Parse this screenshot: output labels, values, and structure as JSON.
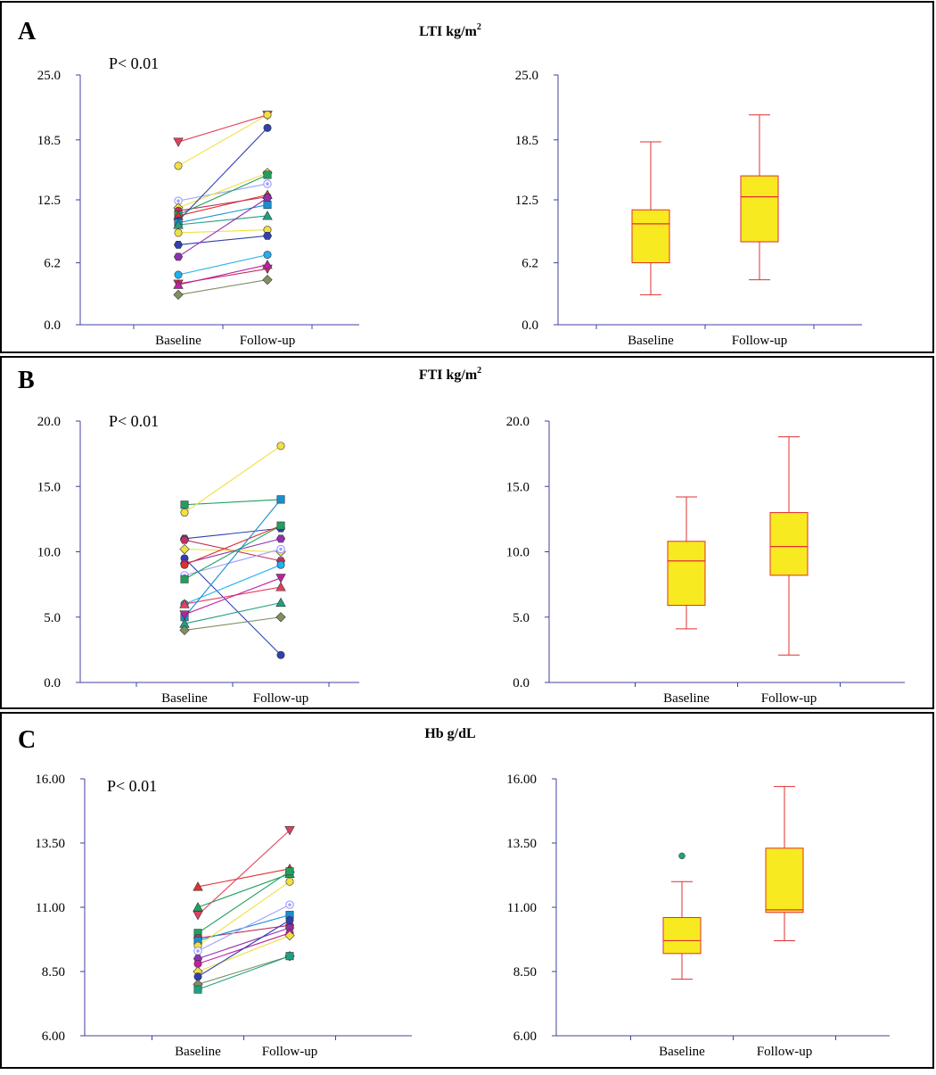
{
  "panels": [
    {
      "letter": "A",
      "title": "LTI kg/m",
      "title_sup": "2",
      "pvalue": "P< 0.01",
      "chart_data": [
        {
          "type": "line",
          "subtype": "paired-dot",
          "categories": [
            "Baseline",
            "Follow-up"
          ],
          "yticks": [
            "0.0",
            "6.2",
            "12.5",
            "18.5",
            "25.0"
          ],
          "ytick_values": [
            0,
            6.2,
            12.5,
            18.5,
            25.0
          ],
          "ylim": [
            0,
            25
          ],
          "series": [
            {
              "name": "s1",
              "values": [
                18.3,
                21.0
              ],
              "color": "#e04060",
              "marker": "triangle-down"
            },
            {
              "name": "s2",
              "values": [
                15.9,
                21.0
              ],
              "color": "#f0e040",
              "marker": "circle"
            },
            {
              "name": "s3",
              "values": [
                12.4,
                14.1
              ],
              "color": "#a0a0ff",
              "marker": "circle-ring"
            },
            {
              "name": "s4",
              "values": [
                11.7,
                15.2
              ],
              "color": "#f0e040",
              "marker": "diamond"
            },
            {
              "name": "s5",
              "values": [
                11.4,
                12.8
              ],
              "color": "#c03060",
              "marker": "circle"
            },
            {
              "name": "s6",
              "values": [
                11.0,
                15.0
              ],
              "color": "#20a060",
              "marker": "square"
            },
            {
              "name": "s7",
              "values": [
                10.9,
                13.0
              ],
              "color": "#e03030",
              "marker": "triangle"
            },
            {
              "name": "s8",
              "values": [
                10.4,
                19.7
              ],
              "color": "#3040b0",
              "marker": "circle"
            },
            {
              "name": "s9",
              "values": [
                10.2,
                12.0
              ],
              "color": "#1890d0",
              "marker": "square"
            },
            {
              "name": "s10",
              "values": [
                10.0,
                10.9
              ],
              "color": "#20a080",
              "marker": "triangle"
            },
            {
              "name": "s11",
              "values": [
                9.2,
                9.5
              ],
              "color": "#f0e040",
              "marker": "circle"
            },
            {
              "name": "s12",
              "values": [
                8.0,
                8.9
              ],
              "color": "#3040b0",
              "marker": "hexagon"
            },
            {
              "name": "s13",
              "values": [
                6.8,
                12.7
              ],
              "color": "#9030b0",
              "marker": "hexagon"
            },
            {
              "name": "s14",
              "values": [
                5.0,
                7.0
              ],
              "color": "#20b0f0",
              "marker": "circle"
            },
            {
              "name": "s15",
              "values": [
                4.1,
                5.6
              ],
              "color": "#c03060",
              "marker": "triangle-down"
            },
            {
              "name": "s16",
              "values": [
                4.0,
                6.0
              ],
              "color": "#c020a0",
              "marker": "triangle"
            },
            {
              "name": "s17",
              "values": [
                3.0,
                4.5
              ],
              "color": "#809060",
              "marker": "diamond"
            }
          ]
        },
        {
          "type": "box",
          "categories": [
            "Baseline",
            "Follow-up"
          ],
          "yticks": [
            "0.0",
            "6.2",
            "12.5",
            "18.5",
            "25.0"
          ],
          "ytick_values": [
            0,
            6.2,
            12.5,
            18.5,
            25.0
          ],
          "ylim": [
            0,
            25
          ],
          "boxes": [
            {
              "min": 3.0,
              "q1": 6.2,
              "median": 10.1,
              "q3": 11.5,
              "max": 18.3,
              "outliers": []
            },
            {
              "min": 4.5,
              "q1": 8.3,
              "median": 12.8,
              "q3": 14.9,
              "max": 21.0,
              "outliers": []
            }
          ]
        }
      ]
    },
    {
      "letter": "B",
      "title": "FTI kg/m",
      "title_sup": "2",
      "pvalue": "P< 0.01",
      "chart_data": [
        {
          "type": "line",
          "subtype": "paired-dot",
          "categories": [
            "Baseline",
            "Follow-up"
          ],
          "yticks": [
            "0.0",
            "5.0",
            "10.0",
            "15.0",
            "20.0"
          ],
          "ytick_values": [
            0,
            5,
            10,
            15,
            20
          ],
          "ylim": [
            0,
            20
          ],
          "series": [
            {
              "name": "s1",
              "values": [
                13.6,
                14.0
              ],
              "color": "#20a060",
              "marker": "square"
            },
            {
              "name": "s2",
              "values": [
                13.0,
                18.1
              ],
              "color": "#f0e040",
              "marker": "circle"
            },
            {
              "name": "s3",
              "values": [
                11.0,
                11.8
              ],
              "color": "#3040b0",
              "marker": "hexagon"
            },
            {
              "name": "s4",
              "values": [
                10.9,
                9.3
              ],
              "color": "#c03060",
              "marker": "hexagon"
            },
            {
              "name": "s5",
              "values": [
                10.2,
                10.0
              ],
              "color": "#f0e040",
              "marker": "diamond"
            },
            {
              "name": "s6",
              "values": [
                9.5,
                2.1
              ],
              "color": "#3040b0",
              "marker": "circle"
            },
            {
              "name": "s7",
              "values": [
                9.1,
                11.0
              ],
              "color": "#9030b0",
              "marker": "hexagon"
            },
            {
              "name": "s8",
              "values": [
                9.0,
                12.0
              ],
              "color": "#e03030",
              "marker": "circle"
            },
            {
              "name": "s9",
              "values": [
                8.2,
                10.2
              ],
              "color": "#a0a0ff",
              "marker": "circle-ring"
            },
            {
              "name": "s10",
              "values": [
                7.9,
                12.0
              ],
              "color": "#20a060",
              "marker": "square"
            },
            {
              "name": "s11",
              "values": [
                6.0,
                9.0
              ],
              "color": "#20b0f0",
              "marker": "circle"
            },
            {
              "name": "s12",
              "values": [
                6.0,
                7.3
              ],
              "color": "#e04060",
              "marker": "triangle"
            },
            {
              "name": "s13",
              "values": [
                5.0,
                14.0
              ],
              "color": "#1890d0",
              "marker": "square"
            },
            {
              "name": "s14",
              "values": [
                5.2,
                8.0
              ],
              "color": "#c020a0",
              "marker": "triangle-down"
            },
            {
              "name": "s15",
              "values": [
                4.5,
                6.1
              ],
              "color": "#20a080",
              "marker": "triangle"
            },
            {
              "name": "s16",
              "values": [
                4.0,
                5.0
              ],
              "color": "#809060",
              "marker": "diamond"
            }
          ]
        },
        {
          "type": "box",
          "categories": [
            "Baseline",
            "Follow-up"
          ],
          "yticks": [
            "0.0",
            "5.0",
            "10.0",
            "15.0",
            "20.0"
          ],
          "ytick_values": [
            0,
            5,
            10,
            15,
            20
          ],
          "ylim": [
            0,
            20
          ],
          "boxes": [
            {
              "min": 4.1,
              "q1": 5.9,
              "median": 9.3,
              "q3": 10.8,
              "max": 14.2,
              "outliers": []
            },
            {
              "min": 2.1,
              "q1": 8.2,
              "median": 10.4,
              "q3": 13.0,
              "max": 18.8,
              "outliers": []
            }
          ]
        }
      ]
    },
    {
      "letter": "C",
      "title": "Hb g/dL",
      "title_sup": "",
      "pvalue": "P< 0.01",
      "chart_data": [
        {
          "type": "line",
          "subtype": "paired-dot",
          "categories": [
            "Baseline",
            "Follow-up"
          ],
          "yticks": [
            "6.00",
            "8.50",
            "11.00",
            "13.50",
            "16.00"
          ],
          "ytick_values": [
            6.0,
            8.5,
            11.0,
            13.5,
            16.0
          ],
          "ylim": [
            6,
            16
          ],
          "series": [
            {
              "name": "s1",
              "values": [
                11.8,
                12.5
              ],
              "color": "#e03030",
              "marker": "triangle"
            },
            {
              "name": "s2",
              "values": [
                11.0,
                12.3
              ],
              "color": "#20a060",
              "marker": "triangle"
            },
            {
              "name": "s3",
              "values": [
                10.7,
                14.0
              ],
              "color": "#e04060",
              "marker": "triangle-down"
            },
            {
              "name": "s4",
              "values": [
                10.0,
                12.4
              ],
              "color": "#20a060",
              "marker": "square"
            },
            {
              "name": "s5",
              "values": [
                9.8,
                10.3
              ],
              "color": "#c03060",
              "marker": "hexagon"
            },
            {
              "name": "s6",
              "values": [
                9.7,
                10.7
              ],
              "color": "#1890d0",
              "marker": "square"
            },
            {
              "name": "s7",
              "values": [
                9.5,
                12.0
              ],
              "color": "#f0e040",
              "marker": "circle"
            },
            {
              "name": "s8",
              "values": [
                9.3,
                11.1
              ],
              "color": "#a0a0ff",
              "marker": "circle-ring"
            },
            {
              "name": "s9",
              "values": [
                9.0,
                10.2
              ],
              "color": "#9030b0",
              "marker": "hexagon"
            },
            {
              "name": "s10",
              "values": [
                8.8,
                10.0
              ],
              "color": "#c020a0",
              "marker": "circle"
            },
            {
              "name": "s11",
              "values": [
                8.5,
                9.9
              ],
              "color": "#f0e040",
              "marker": "diamond"
            },
            {
              "name": "s12",
              "values": [
                8.3,
                10.5
              ],
              "color": "#3040b0",
              "marker": "circle"
            },
            {
              "name": "s13",
              "values": [
                8.0,
                9.1
              ],
              "color": "#809060",
              "marker": "diamond"
            },
            {
              "name": "s14",
              "values": [
                7.8,
                9.1
              ],
              "color": "#20a080",
              "marker": "square"
            }
          ]
        },
        {
          "type": "box",
          "categories": [
            "Baseline",
            "Follow-up"
          ],
          "yticks": [
            "6.00",
            "8.50",
            "11.00",
            "13.50",
            "16.00"
          ],
          "ytick_values": [
            6.0,
            8.5,
            11.0,
            13.5,
            16.0
          ],
          "ylim": [
            6,
            16
          ],
          "boxes": [
            {
              "min": 8.2,
              "q1": 9.2,
              "median": 9.7,
              "q3": 10.6,
              "max": 12.0,
              "outliers": [
                13.0
              ]
            },
            {
              "min": 9.7,
              "q1": 10.8,
              "median": 10.9,
              "q3": 13.3,
              "max": 15.7,
              "outliers": []
            }
          ]
        }
      ]
    }
  ],
  "colors": {
    "axis": "#4040a0",
    "box_fill": "#f8ea20",
    "box_stroke": "#e03030",
    "outlier": "#20a080"
  }
}
